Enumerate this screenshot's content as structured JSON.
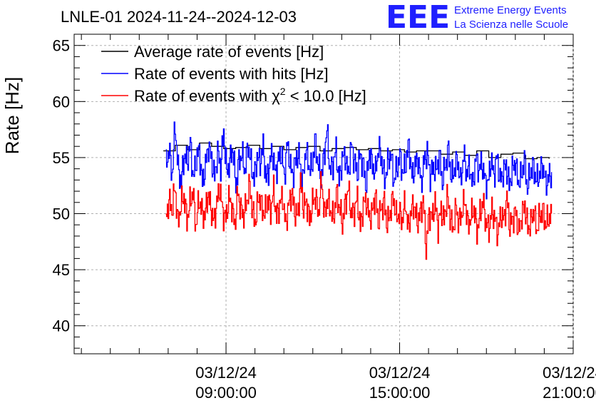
{
  "header": {
    "title": "LNLE-01 2024-11-24--2024-12-03",
    "logo_text": "EEE",
    "logo_line1": "Extreme Energy Events",
    "logo_line2": "La Scienza nelle Scuole"
  },
  "colors": {
    "average": "#000000",
    "hits": "#0000ff",
    "chi2": "#ff0000",
    "grid": "#b0b0b0",
    "logo": "#1f1fff"
  },
  "chart_data": {
    "type": "line",
    "ylabel": "Rate [Hz]",
    "ylim": [
      37.5,
      66
    ],
    "xlim": [
      "03/12/24 03:45:00",
      "03/12/24 21:00:00"
    ],
    "grid": true,
    "legend_position": "top-left",
    "y_ticks": [
      "40",
      "45",
      "50",
      "55",
      "60",
      "65"
    ],
    "x_ticks": [
      {
        "date": "03/12/24",
        "time": "09:00:00"
      },
      {
        "date": "03/12/24",
        "time": "15:00:00"
      },
      {
        "date": "03/12/24",
        "time": "21:00:00"
      }
    ],
    "legend": {
      "average": "Average rate of events [Hz]",
      "hits": "Rate of events with hits [Hz]",
      "chi2_prefix": "Rate of events with ",
      "chi2_symbol": "χ",
      "chi2_sup": "2",
      "chi2_suffix": " < 10.0 [Hz]"
    },
    "series": [
      {
        "name": "Average rate of events [Hz]",
        "color": "#000000",
        "x": [
          "06:50",
          "07:15",
          "07:40",
          "08:05",
          "08:30",
          "08:55",
          "09:20",
          "09:45",
          "10:10",
          "10:35",
          "11:00",
          "11:25",
          "11:50",
          "12:15",
          "12:40",
          "13:05",
          "13:30",
          "13:55",
          "14:20",
          "14:45",
          "15:10",
          "15:35",
          "16:00",
          "16:25",
          "16:50",
          "17:15",
          "17:40",
          "18:05",
          "18:30",
          "18:55",
          "19:20",
          "19:45",
          "20:10"
        ],
        "y": [
          55.6,
          56.1,
          55.7,
          56.3,
          56.0,
          55.8,
          55.9,
          56.1,
          55.8,
          56.0,
          55.7,
          55.9,
          56.0,
          55.6,
          55.8,
          55.9,
          55.7,
          55.8,
          55.6,
          55.7,
          55.5,
          55.6,
          55.6,
          55.3,
          55.5,
          55.2,
          55.6,
          55.0,
          55.3,
          55.4,
          54.9,
          55.0,
          54.9
        ]
      },
      {
        "name": "Rate of events with hits [Hz]",
        "color": "#0000ff",
        "x_start": "06:55",
        "x_end": "20:15",
        "y": [
          54.2,
          55.8,
          53.4,
          57.9,
          54.0,
          52.8,
          55.2,
          54.6,
          56.3,
          53.1,
          54.9,
          55.7,
          52.6,
          54.3,
          56.1,
          54.8,
          53.2,
          55.5,
          54.1,
          57.3,
          53.7,
          54.6,
          55.9,
          52.4,
          54.7,
          55.3,
          53.8,
          56.2,
          54.4,
          53.0,
          55.1,
          54.5,
          56.0,
          52.9,
          54.2,
          55.6,
          53.5,
          54.8,
          55.4,
          53.3,
          56.4,
          54.0,
          53.6,
          55.2,
          54.9,
          52.7,
          55.8,
          54.3,
          53.9,
          56.5,
          54.6,
          53.1,
          55.0,
          57.5,
          53.8,
          54.4,
          55.7,
          52.8,
          54.9,
          55.2,
          53.4,
          56.1,
          54.7,
          53.6,
          55.3,
          54.1,
          52.5,
          55.6,
          54.2,
          53.7,
          56.0,
          54.8,
          53.0,
          54.5,
          55.4,
          52.9,
          54.0,
          55.1,
          53.5,
          54.6,
          56.2,
          53.2,
          54.3,
          55.0,
          52.6,
          54.7,
          55.5,
          53.3,
          54.1,
          53.8,
          55.2,
          52.8,
          54.4,
          55.6,
          53.1,
          54.0,
          54.9,
          52.7,
          55.3,
          53.6,
          54.2,
          52.4,
          55.0,
          53.9,
          54.5,
          53.0,
          52.6,
          54.8,
          53.4,
          55.1,
          52.9,
          53.7,
          54.3,
          52.5,
          53.9,
          54.6,
          52.8,
          53.3,
          54.9,
          52.2,
          53.8,
          54.1,
          52.9,
          53.5,
          54.4,
          52.6,
          53.2,
          53.7
        ]
      },
      {
        "name": "Rate of events with χ2 < 10.0 [Hz]",
        "color": "#ff0000",
        "x_start": "06:55",
        "x_end": "20:15",
        "y": [
          49.6,
          51.2,
          50.3,
          52.4,
          49.1,
          50.8,
          51.6,
          49.4,
          50.9,
          52.0,
          48.8,
          51.3,
          50.2,
          49.7,
          51.8,
          50.5,
          49.2,
          51.0,
          52.3,
          50.1,
          49.5,
          51.4,
          50.7,
          48.9,
          51.9,
          50.4,
          49.8,
          51.1,
          52.6,
          50.0,
          49.3,
          51.7,
          50.6,
          49.9,
          51.2,
          50.3,
          52.1,
          49.6,
          50.8,
          51.5,
          49.0,
          50.7,
          51.9,
          50.2,
          49.7,
          52.8,
          50.5,
          51.1,
          49.4,
          50.9,
          51.6,
          50.0,
          53.1,
          49.8,
          51.3,
          50.4,
          49.5,
          51.8,
          50.6,
          49.1,
          51.0,
          52.2,
          49.9,
          50.3,
          51.4,
          48.7,
          50.8,
          51.2,
          49.6,
          50.1,
          51.7,
          49.3,
          50.5,
          51.0,
          48.9,
          50.2,
          51.5,
          49.7,
          50.0,
          49.4,
          51.1,
          48.6,
          50.3,
          50.8,
          49.2,
          49.9,
          51.3,
          46.9,
          50.1,
          49.6,
          51.0,
          48.8,
          50.4,
          49.3,
          51.6,
          49.8,
          48.5,
          50.6,
          49.1,
          50.2,
          51.2,
          48.9,
          49.7,
          50.5,
          48.4,
          49.9,
          51.1,
          49.2,
          48.6,
          50.3,
          49.5,
          48.2,
          50.0,
          49.4,
          51.4,
          48.8,
          49.6,
          50.1,
          48.3,
          49.9,
          50.7,
          48.7,
          49.1,
          50.4,
          48.5,
          49.8,
          50.2,
          49.0,
          49.6,
          50.0
        ]
      }
    ]
  }
}
